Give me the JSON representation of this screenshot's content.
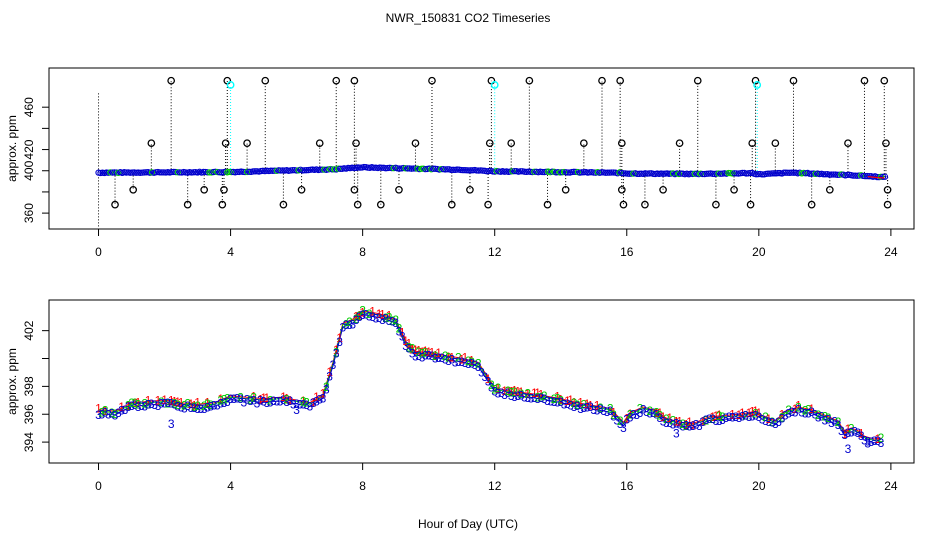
{
  "title": "NWR_150831  CO2 Timeseries",
  "xlabel": "Hour of Day (UTC)",
  "colors": {
    "line1": "#ff0000",
    "line2": "#00cc00",
    "line3": "#0000cc",
    "flag": "#00ffff",
    "outlier": "#000000"
  },
  "chart_data": [
    {
      "type": "scatter",
      "ylabel": "approx. ppm",
      "xlim": [
        -1.5,
        24.7
      ],
      "ylim": [
        345,
        497
      ],
      "xticks": [
        0,
        4,
        8,
        12,
        16,
        20,
        24
      ],
      "yticks": [
        360,
        380,
        400,
        420,
        440,
        460
      ],
      "ytick_labels": {
        "360": "360",
        "400": "400",
        "420": "420",
        "460": "460"
      },
      "baseline": [
        [
          0,
          398.2
        ],
        [
          2,
          398.5
        ],
        [
          3.8,
          398.8
        ],
        [
          4,
          398.8
        ],
        [
          7.2,
          401.5
        ],
        [
          7.8,
          403
        ],
        [
          8,
          403.2
        ],
        [
          9,
          402.5
        ],
        [
          11,
          401
        ],
        [
          12,
          399.5
        ],
        [
          14,
          398.8
        ],
        [
          15.8,
          398
        ],
        [
          16,
          397.5
        ],
        [
          18,
          397
        ],
        [
          19.8,
          397.8
        ],
        [
          20,
          396.6
        ],
        [
          21,
          398.2
        ],
        [
          23,
          395.5
        ],
        [
          23.8,
          394
        ]
      ],
      "outliers_high": [
        2.2,
        3.9,
        5.05,
        7.2,
        7.75,
        10.1,
        11.9,
        13.05,
        15.25,
        15.8,
        18.15,
        19.9,
        21.05,
        23.2,
        23.8
      ],
      "outliers_mid": [
        1.6,
        3.85,
        4.5,
        6.7,
        7.8,
        9.6,
        11.85,
        12.5,
        14.7,
        15.85,
        17.6,
        19.8,
        20.5,
        22.7,
        23.85
      ],
      "outliers_low": [
        0.5,
        2.7,
        3.75,
        5.6,
        7.85,
        8.55,
        10.7,
        11.8,
        13.6,
        15.9,
        16.55,
        18.7,
        19.75,
        21.6,
        23.9
      ],
      "outliers_lower": [
        1.05,
        3.2,
        3.8,
        6.15,
        7.75,
        9.1,
        11.25,
        14.15,
        15.85,
        17.1,
        19.25,
        22.15,
        23.9
      ],
      "flagged": [
        {
          "x": 4.0,
          "y": 481
        },
        {
          "x": 12.0,
          "y": 481
        },
        {
          "x": 19.95,
          "y": 481
        }
      ]
    },
    {
      "type": "scatter",
      "ylabel": "approx. ppm",
      "xlim": [
        -1.5,
        24.7
      ],
      "ylim": [
        392.5,
        404.2
      ],
      "xticks": [
        0,
        4,
        8,
        12,
        16,
        20,
        24
      ],
      "yticks": [
        394,
        396,
        398,
        400,
        402
      ],
      "ytick_labels": {
        "394": "394",
        "396": "396",
        "398": "398",
        "402": "402"
      },
      "series_labels": [
        "1",
        "2",
        "3"
      ],
      "curve": [
        [
          0,
          396.1
        ],
        [
          0.5,
          396.0
        ],
        [
          1,
          396.6
        ],
        [
          1.5,
          396.7
        ],
        [
          2,
          396.8
        ],
        [
          2.5,
          396.6
        ],
        [
          3,
          396.5
        ],
        [
          3.5,
          396.6
        ],
        [
          4,
          397.1
        ],
        [
          4.5,
          397.0
        ],
        [
          5,
          396.9
        ],
        [
          5.5,
          397.0
        ],
        [
          6,
          396.8
        ],
        [
          6.4,
          396.6
        ],
        [
          6.8,
          397.2
        ],
        [
          7.1,
          399.5
        ],
        [
          7.4,
          402.3
        ],
        [
          7.7,
          402.6
        ],
        [
          8,
          403.2
        ],
        [
          8.5,
          403.0
        ],
        [
          9,
          402.6
        ],
        [
          9.3,
          401.0
        ],
        [
          9.6,
          400.3
        ],
        [
          10,
          400.2
        ],
        [
          10.5,
          400.0
        ],
        [
          11,
          399.8
        ],
        [
          11.5,
          399.5
        ],
        [
          12,
          397.7
        ],
        [
          12.5,
          397.4
        ],
        [
          13,
          397.3
        ],
        [
          13.5,
          397.1
        ],
        [
          14,
          396.9
        ],
        [
          14.5,
          396.6
        ],
        [
          15,
          396.4
        ],
        [
          15.5,
          396.2
        ],
        [
          15.9,
          395.2
        ],
        [
          16.1,
          395.9
        ],
        [
          16.5,
          396.3
        ],
        [
          16.8,
          396.1
        ],
        [
          17.2,
          395.5
        ],
        [
          17.6,
          395.2
        ],
        [
          18,
          395.1
        ],
        [
          18.5,
          395.6
        ],
        [
          19,
          395.7
        ],
        [
          19.5,
          395.8
        ],
        [
          19.9,
          396.0
        ],
        [
          20.1,
          395.7
        ],
        [
          20.5,
          395.3
        ],
        [
          20.8,
          396.0
        ],
        [
          21.2,
          396.3
        ],
        [
          21.6,
          396.1
        ],
        [
          22,
          395.7
        ],
        [
          22.4,
          395.3
        ],
        [
          22.6,
          394.5
        ],
        [
          22.8,
          394.8
        ],
        [
          23,
          394.6
        ],
        [
          23.2,
          394.2
        ],
        [
          23.5,
          394.0
        ],
        [
          23.8,
          394.1
        ]
      ]
    }
  ]
}
